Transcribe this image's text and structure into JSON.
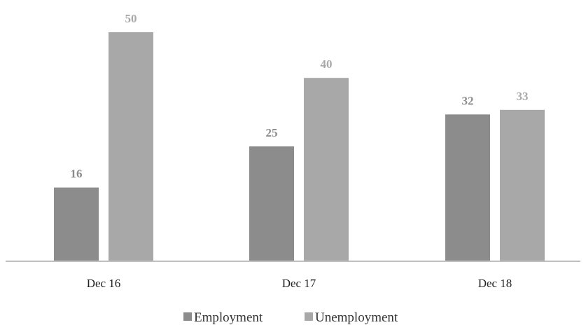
{
  "chart_data": {
    "type": "bar",
    "title": "",
    "xlabel": "",
    "ylabel": "",
    "categories": [
      "Dec 16",
      "Dec 17",
      "Dec 18"
    ],
    "series": [
      {
        "name": "Employment",
        "values": [
          16,
          25,
          32
        ],
        "color": "#8c8c8c"
      },
      {
        "name": "Unemployment",
        "values": [
          50,
          40,
          33
        ],
        "color": "#a8a8a8"
      }
    ],
    "ylim": [
      0,
      50
    ],
    "grid": false,
    "legend_position": "bottom",
    "data_labels": true
  }
}
